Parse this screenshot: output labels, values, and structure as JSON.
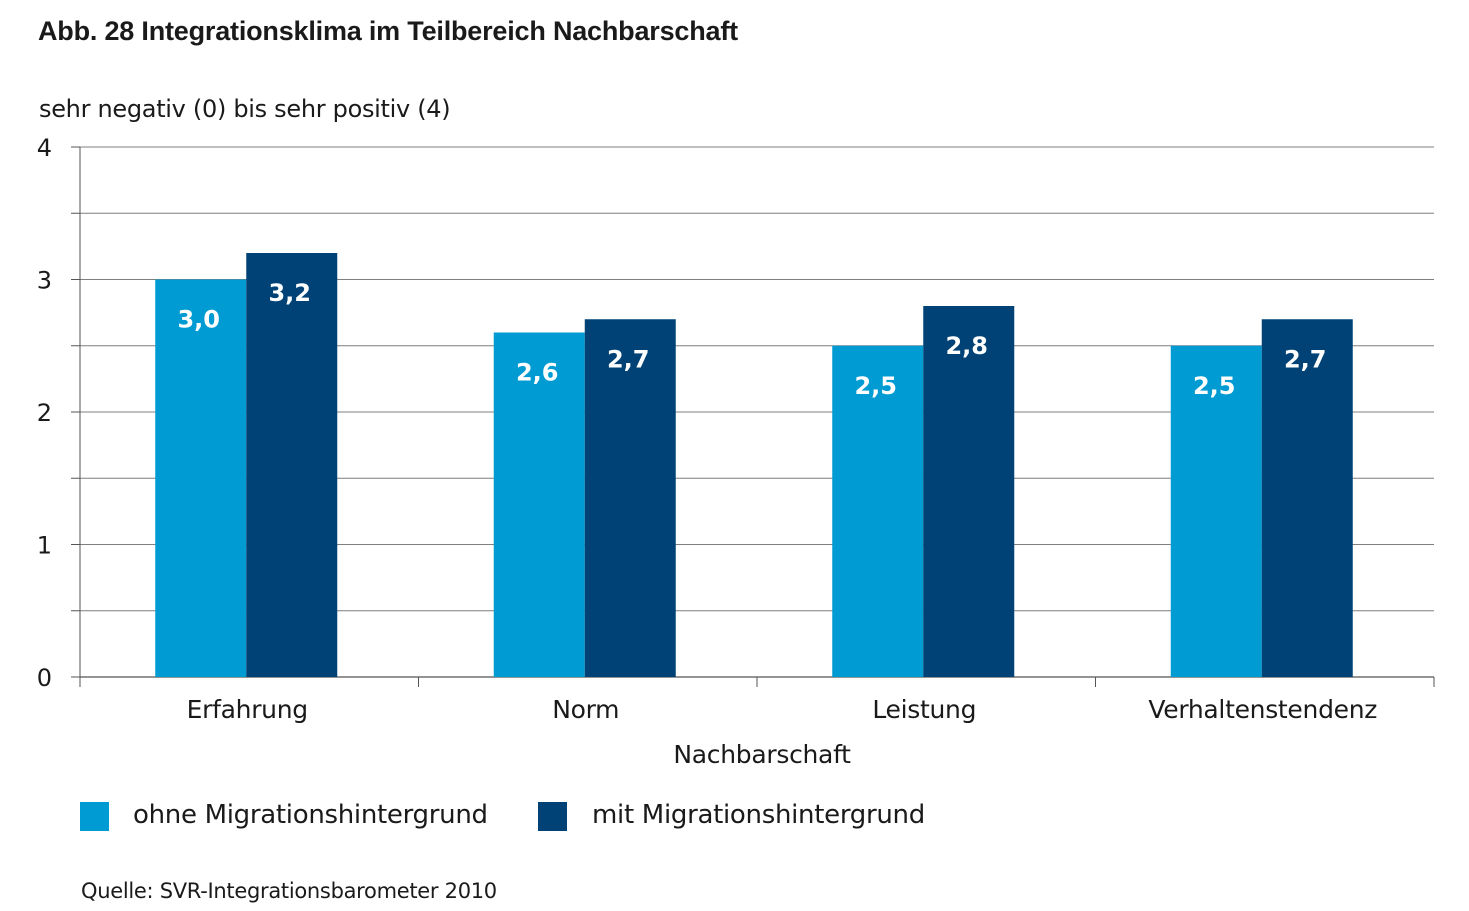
{
  "title": "Abb. 28 Integrationsklima im Teilbereich Nachbarschaft",
  "source": "Quelle: SVR-Integrationsbarometer 2010",
  "colors": {
    "ohne": "#009bd3",
    "mit": "#004275",
    "grid": "#7f7f7f",
    "label_text": "#ffffff"
  },
  "chart_data": {
    "type": "bar",
    "title": "Abb. 28 Integrationsklima im Teilbereich Nachbarschaft",
    "ylabel": "sehr negativ (0) bis sehr positiv (4)",
    "xlabel": "Nachbarschaft",
    "ylim": [
      0,
      4
    ],
    "yticks": [
      "0",
      "1",
      "2",
      "3",
      "4"
    ],
    "grid": true,
    "legend_position": "bottom",
    "categories": [
      "Erfahrung",
      "Norm",
      "Leistung",
      "Verhaltenstendenz"
    ],
    "series": [
      {
        "name": "ohne Migrationshintergrund",
        "values": [
          3.0,
          2.6,
          2.5,
          2.5
        ],
        "labels": [
          "3,0",
          "2,6",
          "2,5",
          "2,5"
        ]
      },
      {
        "name": "mit Migrationshintergrund",
        "values": [
          3.2,
          2.7,
          2.8,
          2.7
        ],
        "labels": [
          "3,2",
          "2,7",
          "2,8",
          "2,7"
        ]
      }
    ]
  }
}
